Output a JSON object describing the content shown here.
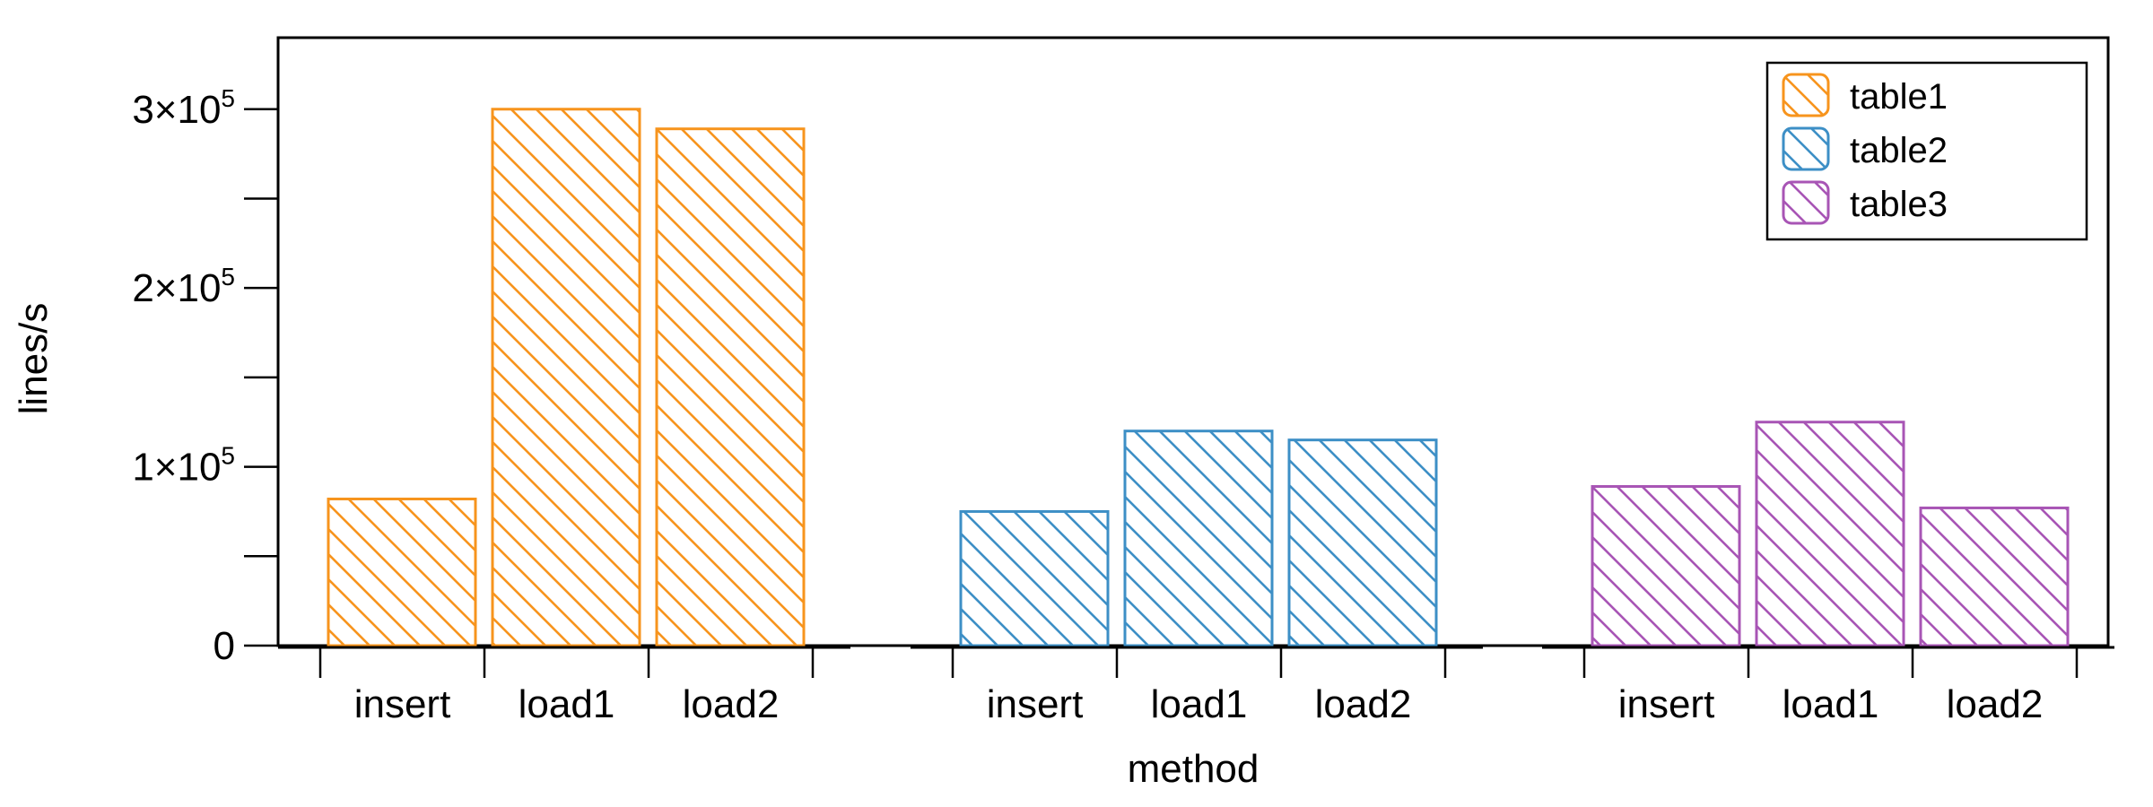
{
  "chart_data": {
    "type": "bar",
    "xlabel": "method",
    "ylabel": "lines/s",
    "ylim": [
      0,
      340000
    ],
    "y_ticks": [
      {
        "value": 0,
        "base": "0",
        "exp": ""
      },
      {
        "value": 100000,
        "base": "1×10",
        "exp": "5"
      },
      {
        "value": 200000,
        "base": "2×10",
        "exp": "5"
      },
      {
        "value": 300000,
        "base": "3×10",
        "exp": "5"
      }
    ],
    "categories": [
      "insert",
      "load1",
      "load2"
    ],
    "series": [
      {
        "name": "table1",
        "color": "#f7941d",
        "values": [
          82000,
          300000,
          289000
        ]
      },
      {
        "name": "table2",
        "color": "#3d8fc6",
        "values": [
          75000,
          120000,
          115000
        ]
      },
      {
        "name": "table3",
        "color": "#a855b5",
        "values": [
          89000,
          125000,
          77000
        ]
      }
    ],
    "legend_position": "top-right",
    "grid": false
  }
}
